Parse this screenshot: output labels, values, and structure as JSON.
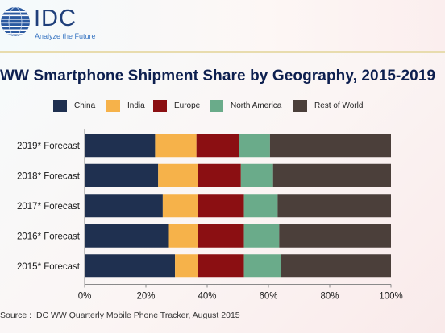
{
  "brand": {
    "name": "IDC",
    "tagline": "Analyze the Future"
  },
  "chart_data": {
    "type": "bar",
    "orientation": "horizontal",
    "stacked": true,
    "title": "WW Smartphone Shipment Share by Geography, 2015-2019",
    "categories": [
      "2019* Forecast",
      "2018* Forecast",
      "2017* Forecast",
      "2016* Forecast",
      "2015* Forecast"
    ],
    "series": [
      {
        "name": "China",
        "color": "#1f3050",
        "values": [
          23,
          24,
          25.5,
          27.5,
          29.5
        ]
      },
      {
        "name": "India",
        "color": "#f6b24a",
        "values": [
          13.5,
          13,
          11.5,
          9.5,
          7.5
        ]
      },
      {
        "name": "Europe",
        "color": "#8b0f12",
        "values": [
          14,
          14,
          15,
          15,
          15
        ]
      },
      {
        "name": "North America",
        "color": "#6aab8a",
        "values": [
          10,
          10.5,
          11,
          11.5,
          12
        ]
      },
      {
        "name": "Rest of World",
        "color": "#4b3f3a",
        "values": [
          39.5,
          38.5,
          37,
          36.5,
          36
        ]
      }
    ],
    "xlim": [
      0,
      100
    ],
    "xticks": [
      "0%",
      "20%",
      "40%",
      "60%",
      "80%",
      "100%"
    ],
    "legend_position": "top",
    "grid": false
  },
  "source": "Source : IDC WW Quarterly Mobile Phone Tracker, August 2015"
}
